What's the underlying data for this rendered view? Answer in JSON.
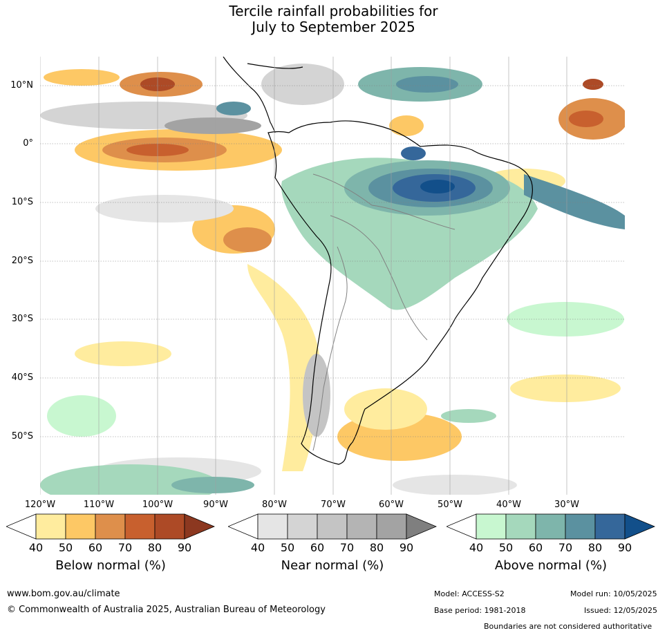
{
  "title": {
    "line1": "Tercile rainfall probabilities for",
    "line2": "July to September 2025"
  },
  "map": {
    "lat_labels": [
      "10°N",
      "0°",
      "10°S",
      "20°S",
      "30°S",
      "40°S",
      "50°S"
    ],
    "lon_labels": [
      "120°W",
      "110°W",
      "100°W",
      "90°W",
      "80°W",
      "70°W",
      "60°W",
      "50°W",
      "40°W",
      "30°W"
    ]
  },
  "colorbars": [
    {
      "title": "Below normal (%)",
      "ticks": [
        "40",
        "50",
        "60",
        "70",
        "80",
        "90"
      ],
      "colors": [
        "#ffec9e",
        "#fdc865",
        "#de8f4b",
        "#c8602e",
        "#ad4a26",
        "#8c3820"
      ]
    },
    {
      "title": "Near normal (%)",
      "ticks": [
        "40",
        "50",
        "60",
        "70",
        "80",
        "90"
      ],
      "colors": [
        "#e5e5e5",
        "#d4d4d4",
        "#c4c4c4",
        "#b4b4b4",
        "#a3a3a3",
        "#7f7f7f"
      ]
    },
    {
      "title": "Above normal (%)",
      "ticks": [
        "40",
        "50",
        "60",
        "70",
        "80",
        "90"
      ],
      "colors": [
        "#c8f7d0",
        "#a5d8bc",
        "#7eb5ab",
        "#5b91a0",
        "#35679a",
        "#124f8a"
      ]
    }
  ],
  "footer": {
    "url": "www.bom.gov.au/climate",
    "copyright": "© Commonwealth of Australia 2025, Australian Bureau of Meteorology",
    "model": "Model: ACCESS-S2",
    "model_run": "Model run: 10/05/2025",
    "base_period": "Base period: 1981-2018",
    "issued": "Issued: 12/05/2025",
    "boundaries": "Boundaries are not considered authoritative"
  }
}
